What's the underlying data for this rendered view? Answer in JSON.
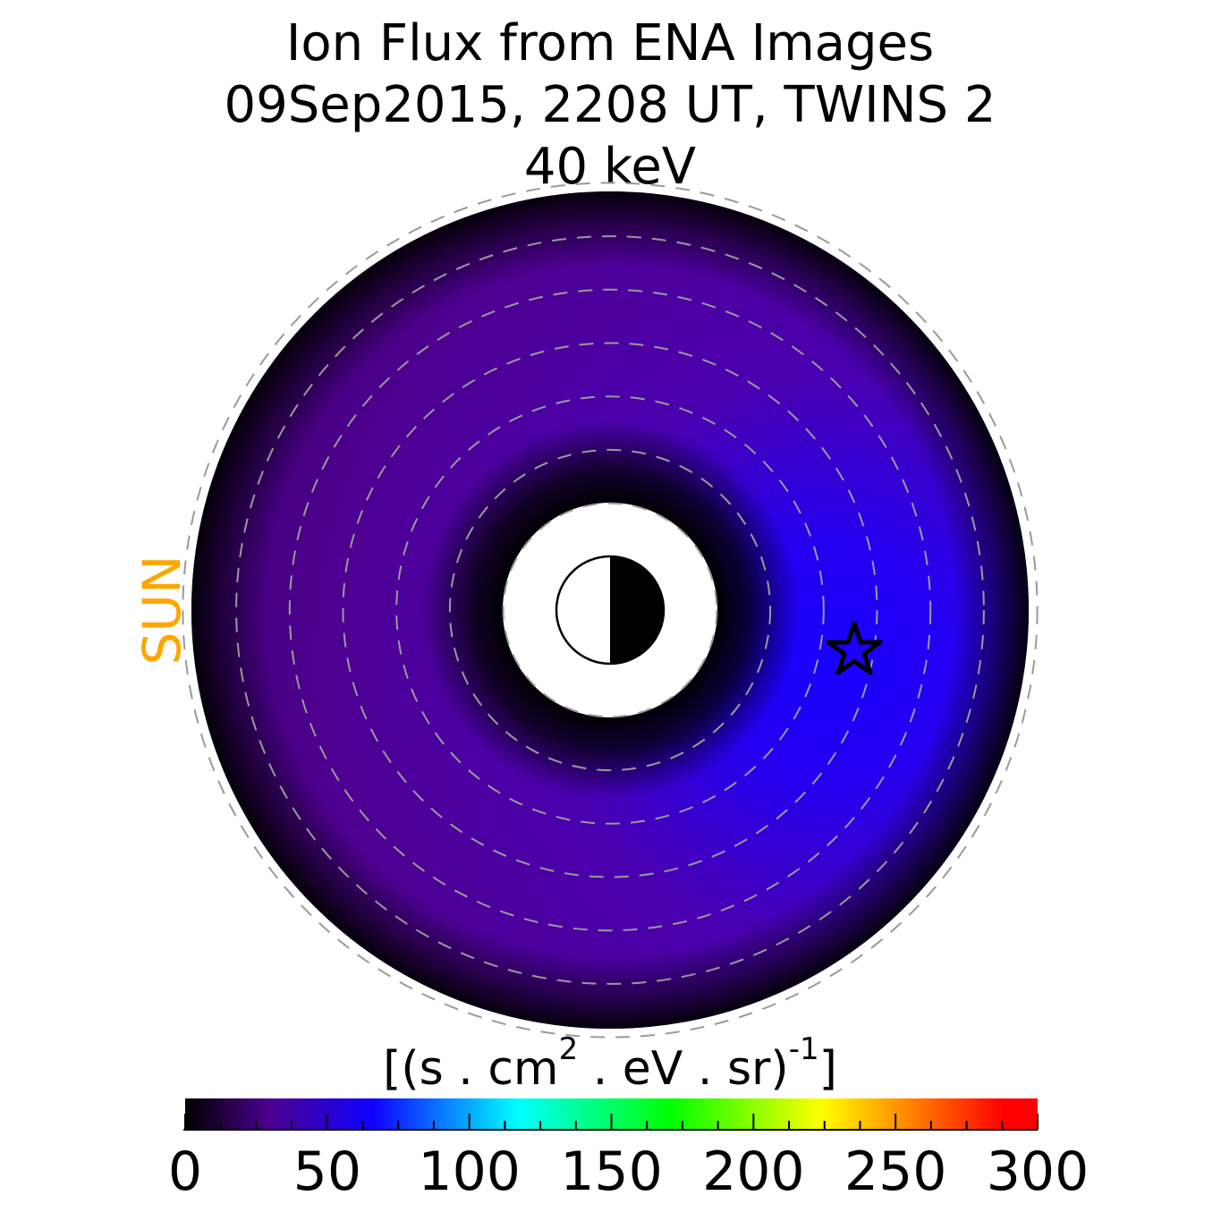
{
  "chart_data": {
    "type": "heatmap",
    "title": [
      "Ion Flux from  ENA Images",
      "09Sep2015, 2208 UT,  TWINS 2",
      "40 keV"
    ],
    "projection": "polar, equatorial plane, sun to the left",
    "sun_label": "SUN",
    "sun_color": "#ffa500",
    "colorbar": {
      "label_base": "[(s . cm",
      "label_sup1": "2",
      "label_mid": " . eV . sr)",
      "label_sup2": "-1",
      "label_end": "]",
      "range": [
        0,
        300
      ],
      "ticks": [
        0,
        50,
        100,
        150,
        200,
        250,
        300
      ],
      "tick_labels": [
        "0",
        "50",
        "100",
        "150",
        "200",
        "250",
        "300"
      ],
      "minor_step": 12.5,
      "colormap": [
        {
          "value": 0,
          "color": "#000000"
        },
        {
          "value": 30,
          "color": "#4c0090"
        },
        {
          "value": 66,
          "color": "#1000ff"
        },
        {
          "value": 117,
          "color": "#00ffff"
        },
        {
          "value": 171,
          "color": "#00ff00"
        },
        {
          "value": 224,
          "color": "#ffff00"
        },
        {
          "value": 288,
          "color": "#ff0000"
        },
        {
          "value": 300,
          "color": "#ff0000"
        }
      ]
    },
    "dashed_circles_L": [
      2,
      3,
      4,
      5,
      6,
      7,
      8
    ],
    "data_extent_L": [
      2,
      7.8
    ],
    "flux_peak_approx": 70,
    "peak_location": "nightside, post-midnight",
    "marker": "star",
    "earth_symbol": "day side white, night side black"
  }
}
